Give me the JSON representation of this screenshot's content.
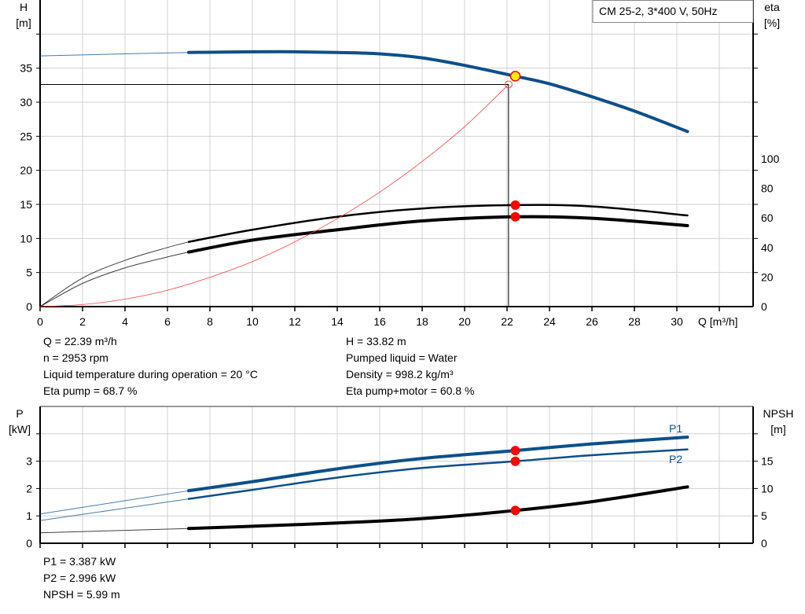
{
  "colors": {
    "head": "#0d4f8b",
    "eta": "#000000",
    "system": "#ff4040",
    "duty_point": "#ffee00",
    "marker": "#ff0000",
    "grid": "#d0d0d0",
    "power": "#0d4f8b",
    "npsh": "#000000"
  },
  "chart_data": [
    {
      "type": "line",
      "legend_box": "CM 25-2, 3*400 V, 50Hz",
      "xlabel": "Q [m³/h]",
      "ylabel_left": [
        "H",
        "[m]"
      ],
      "ylabel_right": [
        "eta",
        "[%]"
      ],
      "xlim": [
        0,
        33.6
      ],
      "xticks": [
        0,
        2,
        4,
        6,
        8,
        10,
        12,
        14,
        16,
        18,
        20,
        22,
        24,
        26,
        28,
        30
      ],
      "ylim_left": [
        0,
        45
      ],
      "yticks_left": [
        0,
        5,
        10,
        15,
        20,
        25,
        30,
        35
      ],
      "ylim_right": [
        0,
        207.5
      ],
      "yticks_right": [
        0,
        20,
        40,
        60,
        80,
        100
      ],
      "grid": true,
      "series": [
        {
          "axis": "left",
          "color": "#0d4f8b",
          "x": [
            0,
            4,
            7,
            10,
            12,
            14,
            16,
            18,
            20,
            22.39,
            24,
            26,
            28,
            30.5
          ],
          "y": [
            36.8,
            37.1,
            37.3,
            37.4,
            37.4,
            37.3,
            37.1,
            36.5,
            35.4,
            33.82,
            32.7,
            30.8,
            28.7,
            25.7
          ],
          "thin_below": 7
        },
        {
          "axis": "right",
          "color": "#000000",
          "x": [
            0,
            2,
            4,
            6,
            7,
            10,
            14,
            18,
            22.39,
            26,
            30.5
          ],
          "y": [
            0,
            19.3,
            31.3,
            40,
            43.8,
            52,
            60.8,
            66.4,
            68.7,
            67.8,
            61.7
          ],
          "thin_below": 7
        },
        {
          "axis": "right",
          "color": "#000000",
          "x": [
            0,
            2,
            4,
            6,
            7,
            10,
            14,
            18,
            22.39,
            26,
            30.5
          ],
          "y": [
            0,
            15.7,
            26.2,
            33.6,
            36.9,
            45,
            52,
            58,
            60.8,
            59.8,
            54.8
          ],
          "thin_below": 7,
          "thick": true
        },
        {
          "axis": "left",
          "color": "#ff4040",
          "x": [
            0,
            2,
            4,
            6,
            8,
            10,
            12,
            14,
            16,
            18,
            20,
            22.07
          ],
          "y": [
            0,
            0.3,
            1.1,
            2.4,
            4.3,
            6.6,
            9.5,
            12.9,
            16.8,
            21.3,
            26.4,
            32.6
          ]
        }
      ],
      "duty_point": {
        "Q": 22.39,
        "H": 33.82
      },
      "eta_points": [
        68.7,
        60.8
      ],
      "system_point": {
        "Q": 22.07,
        "H": 32.6
      }
    },
    {
      "type": "line",
      "ylabel_left": [
        "P",
        "[kW]"
      ],
      "ylabel_right": [
        "NPSH",
        "[m]"
      ],
      "xlim": [
        0,
        33.6
      ],
      "ylim_left": [
        0,
        5
      ],
      "yticks_left": [
        0,
        1,
        2,
        3
      ],
      "ylim_right": [
        0,
        25
      ],
      "yticks_right": [
        0,
        5,
        10,
        15
      ],
      "grid": true,
      "series": [
        {
          "name": "P1",
          "axis": "left",
          "color": "#0d4f8b",
          "x": [
            0,
            7,
            10,
            14,
            18,
            22.39,
            26,
            30.5
          ],
          "y": [
            1.07,
            1.92,
            2.25,
            2.72,
            3.1,
            3.387,
            3.63,
            3.88
          ],
          "thin_below": 7,
          "thick": true
        },
        {
          "name": "P2",
          "axis": "left",
          "color": "#0d4f8b",
          "x": [
            0,
            7,
            10,
            14,
            18,
            22.39,
            26,
            30.5
          ],
          "y": [
            0.83,
            1.62,
            1.95,
            2.4,
            2.75,
            2.996,
            3.22,
            3.43
          ],
          "thin_below": 7
        },
        {
          "axis": "right",
          "color": "#000000",
          "x": [
            0,
            7,
            10,
            14,
            18,
            22.39,
            26,
            30.5
          ],
          "y": [
            1.9,
            2.7,
            3.1,
            3.7,
            4.5,
            5.99,
            7.6,
            10.3
          ],
          "thin_below": 7,
          "thick": true
        }
      ],
      "markers_Q": 22.39
    }
  ],
  "info_top_left": [
    "Q = 22.39 m³/h",
    "n = 2953 rpm",
    "Liquid temperature during operation = 20 °C",
    "Eta pump = 68.7 %"
  ],
  "info_top_right": [
    "H = 33.82 m",
    "Pumped liquid = Water",
    "Density = 998.2 kg/m³",
    "Eta pump+motor = 60.8 %"
  ],
  "info_bottom": [
    "P1 = 3.387 kW",
    "P2 = 2.996 kW",
    "NPSH = 5.99 m"
  ]
}
